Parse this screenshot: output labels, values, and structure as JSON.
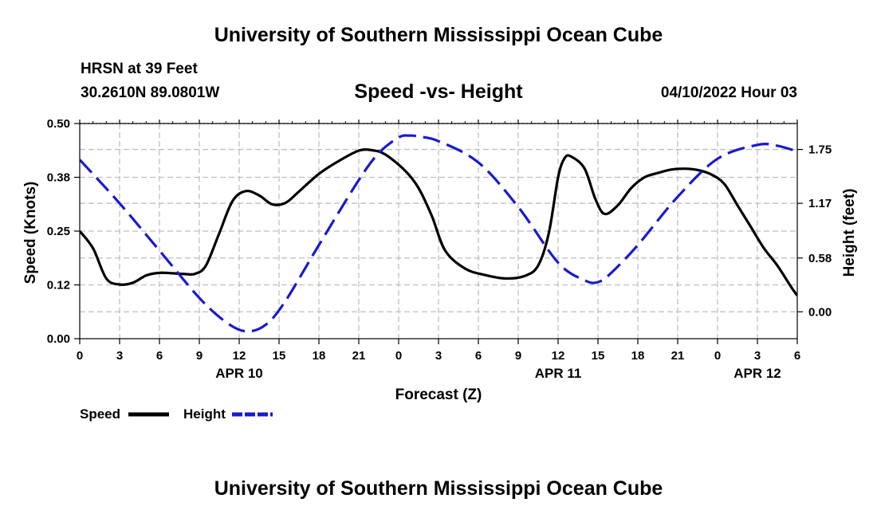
{
  "page": {
    "title_top": "University of Southern Mississippi Ocean Cube",
    "title_bottom": "University of Southern Mississippi Ocean Cube",
    "station": "HRSN at 39 Feet",
    "location": "30.2610N  89.0801W",
    "subtitle": "Speed -vs- Height",
    "datetime": "04/10/2022 Hour 03"
  },
  "colors": {
    "speed": "#000000",
    "height": "#1a1acc",
    "grid": "#bfbfbf"
  },
  "chart_data": {
    "type": "line",
    "title": "Speed -vs- Height",
    "xlabel": "Forecast (Z)",
    "ylabel": "Speed (Knots)",
    "y2label": "Height (feet)",
    "xlim": [
      0,
      54
    ],
    "ylim": [
      0,
      0.5
    ],
    "y2lim": [
      -0.29,
      2.03
    ],
    "x_ticks": [
      0,
      3,
      6,
      9,
      12,
      15,
      18,
      21,
      24,
      27,
      30,
      33,
      36,
      39,
      42,
      45,
      48,
      51,
      54
    ],
    "x_tick_labels": [
      "0",
      "3",
      "6",
      "9",
      "12",
      "15",
      "18",
      "21",
      "0",
      "3",
      "6",
      "9",
      "12",
      "15",
      "18",
      "21",
      "0",
      "3",
      "6"
    ],
    "date_labels": [
      {
        "x": 12,
        "label": "APR 10"
      },
      {
        "x": 36,
        "label": "APR 11"
      },
      {
        "x": 51,
        "label": "APR 12"
      }
    ],
    "y_ticks": [
      0.0,
      0.125,
      0.25,
      0.375,
      0.5
    ],
    "y_tick_labels": [
      "0.00",
      "0.12",
      "0.25",
      "0.38",
      "0.50"
    ],
    "y2_ticks": [
      0.0,
      0.58,
      1.17,
      1.75
    ],
    "y2_tick_labels": [
      "0.00",
      "0.58",
      "1.17",
      "1.75"
    ],
    "series": [
      {
        "name": "Speed",
        "axis": "left",
        "style": "solid",
        "x": [
          0,
          1,
          2,
          3,
          4,
          5,
          6,
          7,
          8,
          8.7,
          9.5,
          10.5,
          11.5,
          12.5,
          13.5,
          14.5,
          15.5,
          16.5,
          18,
          19.5,
          21,
          22,
          23,
          24.5,
          25.5,
          26.5,
          27.5,
          29,
          30.5,
          32,
          33.5,
          34.5,
          35.3,
          36,
          36.5,
          37,
          38,
          38.8,
          39.5,
          40.5,
          41.5,
          42.5,
          43.5,
          44.5,
          45.5,
          46.5,
          47.5,
          48.5,
          49.5,
          50.5,
          51.5,
          52.5,
          53.5,
          54
        ],
        "values": [
          0.25,
          0.21,
          0.14,
          0.126,
          0.13,
          0.147,
          0.153,
          0.152,
          0.15,
          0.151,
          0.17,
          0.245,
          0.32,
          0.343,
          0.333,
          0.312,
          0.316,
          0.342,
          0.383,
          0.413,
          0.437,
          0.438,
          0.428,
          0.39,
          0.35,
          0.285,
          0.205,
          0.163,
          0.148,
          0.14,
          0.146,
          0.17,
          0.245,
          0.375,
          0.42,
          0.423,
          0.395,
          0.325,
          0.29,
          0.31,
          0.35,
          0.375,
          0.385,
          0.393,
          0.395,
          0.392,
          0.382,
          0.36,
          0.31,
          0.26,
          0.21,
          0.17,
          0.122,
          0.1
        ]
      },
      {
        "name": "Height",
        "axis": "right",
        "style": "dashed",
        "x": [
          0,
          3,
          6,
          9,
          11,
          12.5,
          14,
          15.5,
          18,
          21,
          22.5,
          24,
          24.8,
          25.5,
          27,
          30,
          33,
          36,
          38,
          39,
          40,
          42,
          45,
          48,
          51,
          52.5,
          54
        ],
        "values": [
          1.64,
          1.17,
          0.66,
          0.15,
          -0.11,
          -0.21,
          -0.14,
          0.12,
          0.72,
          1.42,
          1.71,
          1.88,
          1.9,
          1.89,
          1.84,
          1.61,
          1.13,
          0.53,
          0.34,
          0.32,
          0.42,
          0.72,
          1.24,
          1.65,
          1.8,
          1.79,
          1.73
        ]
      }
    ],
    "legend": [
      {
        "label": "Speed",
        "style": "solid"
      },
      {
        "label": "Height",
        "style": "dashed"
      }
    ],
    "legend_position": "bottom-left",
    "grid": true
  }
}
